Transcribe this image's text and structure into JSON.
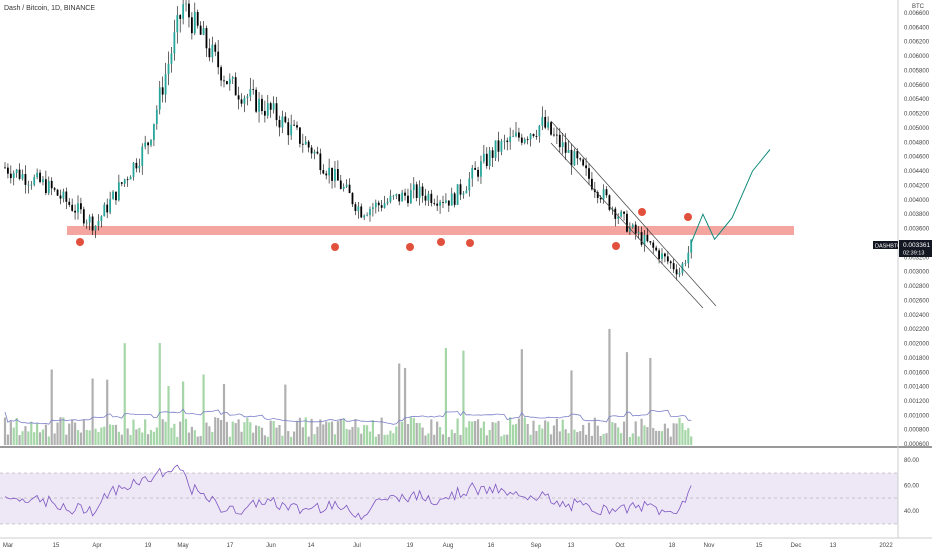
{
  "header": {
    "symbol_title": "Dash / Bitcoin, 1D, BINANCE"
  },
  "price_scale": {
    "unit": "BTC",
    "ticks": [
      "0.006600",
      "0.006400",
      "0.006200",
      "0.006000",
      "0.005800",
      "0.005600",
      "0.005400",
      "0.005200",
      "0.005000",
      "0.004800",
      "0.004600",
      "0.004400",
      "0.004200",
      "0.004000",
      "0.003800",
      "0.003600",
      "0.003400",
      "0.003200",
      "0.003000",
      "0.002800",
      "0.002600",
      "0.002400",
      "0.002200",
      "0.002000",
      "0.001800",
      "0.001600",
      "0.001400",
      "0.001200",
      "0.001000",
      "0.000800",
      "0.000600"
    ]
  },
  "last_price": {
    "symbol_tag": "DASHBTC",
    "value": "0.003361",
    "countdown": "02:39:13"
  },
  "rsi_scale": {
    "ticks": [
      "80.00",
      "60.00",
      "40.00"
    ]
  },
  "time_axis": {
    "labels": [
      "Mar",
      "15",
      "Apr",
      "19",
      "May",
      "17",
      "Jun",
      "14",
      "Jul",
      "19",
      "Aug",
      "16",
      "Sep",
      "13",
      "Oct",
      "18",
      "Nov",
      "15",
      "Dec",
      "13",
      "2022"
    ]
  },
  "colors": {
    "up": "#26a69a",
    "down": "#ef5350",
    "candle": "#000000",
    "volume_up": "#a5d6a7",
    "volume_down": "#b0b0b0",
    "support_zone": "#f4a5a0",
    "marker": "#e0503c",
    "projection": "#0f8a7a",
    "rsi_line": "#7e57c2",
    "rsi_band": "#ede7f6"
  },
  "chart_data": {
    "type": "candlestick",
    "series_note": "",
    "x": [
      "2021-03-01",
      "2021-03-15",
      "2021-04-01",
      "2021-04-19",
      "2021-05-01",
      "2021-05-17",
      "2021-06-01",
      "2021-06-14",
      "2021-07-01",
      "2021-07-19",
      "2021-08-01",
      "2021-08-16",
      "2021-09-01",
      "2021-09-13",
      "2021-10-01",
      "2021-10-18",
      "2021-10-22"
    ],
    "close": [
      0.00445,
      0.0042,
      0.00365,
      0.0048,
      0.0067,
      0.0056,
      0.0052,
      0.0047,
      0.00385,
      0.0041,
      0.004,
      0.0047,
      0.00505,
      0.0045,
      0.0036,
      0.003,
      0.003361
    ],
    "support_zone": [
      0.00355,
      0.00368
    ],
    "projection": {
      "x": [
        "2021-10-22",
        "2021-10-26",
        "2021-10-30",
        "2021-11-05",
        "2021-11-12",
        "2021-11-18"
      ],
      "y": [
        0.0034,
        0.0038,
        0.00345,
        0.00375,
        0.0044,
        0.0047
      ]
    },
    "ylim": [
      0.0005,
      0.0068
    ],
    "rsi": {
      "levels": [
        70,
        50,
        30
      ],
      "ylim": [
        20,
        90
      ]
    }
  }
}
